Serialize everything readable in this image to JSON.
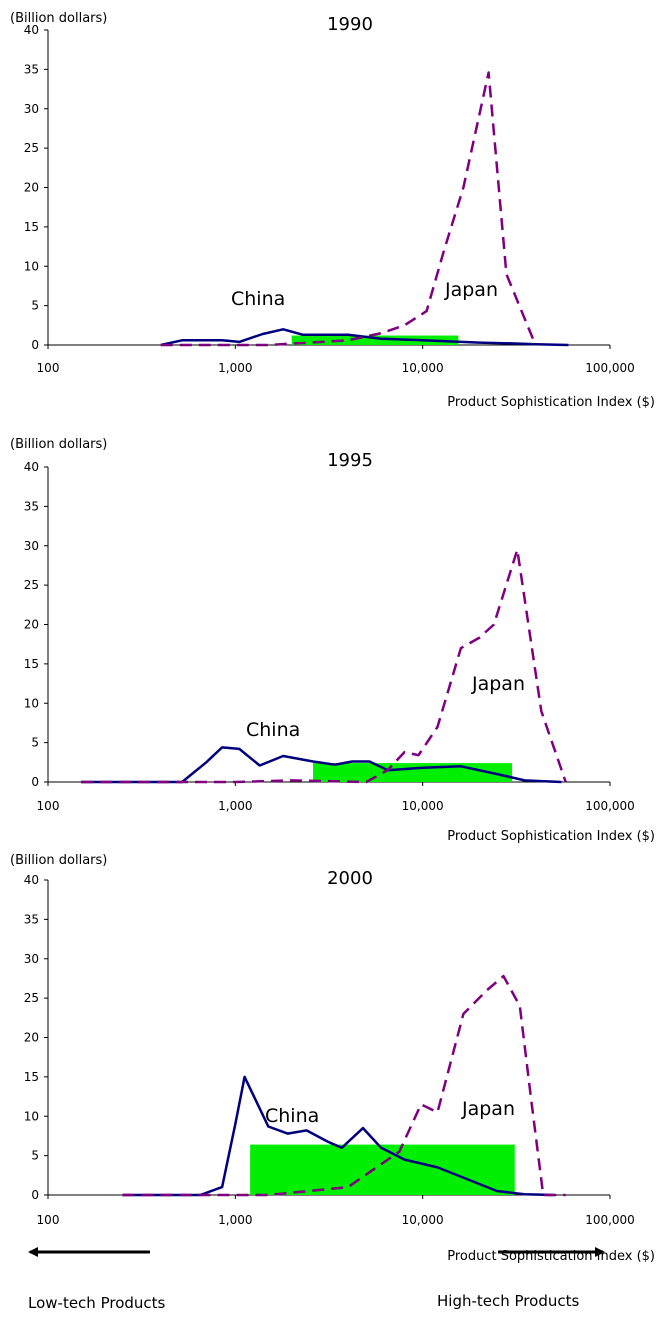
{
  "chart_data": [
    {
      "type": "line",
      "title": "1990",
      "ylabel": "(Billion dollars)",
      "xlabel": "Product Sophistication Index ($)",
      "xscale": "log",
      "ylim": [
        0,
        40
      ],
      "yticks": [
        "0",
        "5",
        "10",
        "15",
        "20",
        "25",
        "30",
        "35",
        "40"
      ],
      "xticks": [
        {
          "value": 100,
          "label": "100"
        },
        {
          "value": 1000,
          "label": "1,000"
        },
        {
          "value": 10000,
          "label": "10,000"
        },
        {
          "value": 100000,
          "label": "100,000"
        }
      ],
      "series": [
        {
          "name": "China",
          "color": "#00007f",
          "dash": "solid",
          "points": [
            [
              400,
              0
            ],
            [
              520,
              0.6
            ],
            [
              700,
              0.6
            ],
            [
              850,
              0.6
            ],
            [
              1050,
              0.4
            ],
            [
              1400,
              1.4
            ],
            [
              1800,
              2.0
            ],
            [
              2300,
              1.3
            ],
            [
              3000,
              1.3
            ],
            [
              4000,
              1.3
            ],
            [
              6000,
              0.8
            ],
            [
              10000,
              0.6
            ],
            [
              20000,
              0.3
            ],
            [
              30000,
              0.2
            ],
            [
              40000,
              0.1
            ],
            [
              60000,
              0
            ]
          ]
        },
        {
          "name": "Japan",
          "color": "#7f007f",
          "dash": "dashed",
          "points": [
            [
              400,
              0
            ],
            [
              800,
              0
            ],
            [
              1500,
              0
            ],
            [
              2500,
              0.3
            ],
            [
              4000,
              0.6
            ],
            [
              6000,
              1.5
            ],
            [
              8000,
              2.5
            ],
            [
              10500,
              4.3
            ],
            [
              13000,
              12
            ],
            [
              16500,
              20
            ],
            [
              22500,
              34.6
            ],
            [
              28000,
              9
            ],
            [
              40000,
              0
            ]
          ]
        }
      ],
      "annotations": {
        "china": "China",
        "japan": "Japan"
      },
      "highlight": {
        "from": 2000,
        "to": 15500,
        "height": 1.2,
        "color": "#00ee00"
      }
    },
    {
      "type": "line",
      "title": "1995",
      "ylabel": "(Billion dollars)",
      "xlabel": "Product Sophistication Index ($)",
      "xscale": "log",
      "ylim": [
        0,
        40
      ],
      "yticks": [
        "0",
        "5",
        "10",
        "15",
        "20",
        "25",
        "30",
        "35",
        "40"
      ],
      "xticks": [
        {
          "value": 100,
          "label": "100"
        },
        {
          "value": 1000,
          "label": "1,000"
        },
        {
          "value": 10000,
          "label": "10,000"
        },
        {
          "value": 100000,
          "label": "100,000"
        }
      ],
      "series": [
        {
          "name": "China",
          "color": "#00007f",
          "dash": "solid",
          "points": [
            [
              150,
              0
            ],
            [
              300,
              0
            ],
            [
              520,
              0
            ],
            [
              700,
              2.5
            ],
            [
              850,
              4.4
            ],
            [
              1050,
              4.2
            ],
            [
              1350,
              2.1
            ],
            [
              1800,
              3.3
            ],
            [
              2600,
              2.6
            ],
            [
              3400,
              2.2
            ],
            [
              4200,
              2.6
            ],
            [
              5200,
              2.6
            ],
            [
              6500,
              1.5
            ],
            [
              10000,
              1.8
            ],
            [
              16000,
              2.0
            ],
            [
              25000,
              1.0
            ],
            [
              35000,
              0.2
            ],
            [
              55000,
              0
            ]
          ]
        },
        {
          "name": "Japan",
          "color": "#7f007f",
          "dash": "dashed",
          "points": [
            [
              150,
              0
            ],
            [
              1000,
              0
            ],
            [
              2000,
              0.2
            ],
            [
              5000,
              0
            ],
            [
              6500,
              1.5
            ],
            [
              8000,
              3.8
            ],
            [
              9500,
              3.4
            ],
            [
              12000,
              7
            ],
            [
              16000,
              17
            ],
            [
              20000,
              18.3
            ],
            [
              24000,
              20
            ],
            [
              32000,
              29.5
            ],
            [
              43000,
              9
            ],
            [
              58000,
              0
            ]
          ]
        }
      ],
      "annotations": {
        "china": "China",
        "japan": "Japan"
      },
      "highlight": {
        "from": 2600,
        "to": 30000,
        "height": 2.4,
        "color": "#00ee00"
      }
    },
    {
      "type": "line",
      "title": "2000",
      "ylabel": "(Billion dollars)",
      "xlabel": "Product Sophistication Index ($)",
      "xscale": "log",
      "ylim": [
        0,
        40
      ],
      "yticks": [
        "0",
        "5",
        "10",
        "15",
        "20",
        "25",
        "30",
        "35",
        "40"
      ],
      "xticks": [
        {
          "value": 100,
          "label": "100"
        },
        {
          "value": 1000,
          "label": "1,000"
        },
        {
          "value": 10000,
          "label": "10,000"
        },
        {
          "value": 100000,
          "label": "100,000"
        }
      ],
      "series": [
        {
          "name": "China",
          "color": "#00007f",
          "dash": "solid",
          "points": [
            [
              250,
              0
            ],
            [
              650,
              0
            ],
            [
              850,
              1.0
            ],
            [
              1000,
              9
            ],
            [
              1120,
              15
            ],
            [
              1500,
              8.7
            ],
            [
              1900,
              7.8
            ],
            [
              2400,
              8.2
            ],
            [
              3100,
              6.8
            ],
            [
              3700,
              6.0
            ],
            [
              4800,
              8.5
            ],
            [
              6000,
              6.0
            ],
            [
              8000,
              4.5
            ],
            [
              12000,
              3.5
            ],
            [
              25000,
              0.5
            ],
            [
              35000,
              0.1
            ],
            [
              50000,
              0
            ]
          ]
        },
        {
          "name": "Japan",
          "color": "#7f007f",
          "dash": "dashed",
          "points": [
            [
              250,
              0
            ],
            [
              1500,
              0
            ],
            [
              4000,
              1.0
            ],
            [
              7500,
              5.5
            ],
            [
              9800,
              11.5
            ],
            [
              12000,
              10.5
            ],
            [
              16500,
              23
            ],
            [
              22000,
              26
            ],
            [
              27000,
              27.8
            ],
            [
              33000,
              24
            ],
            [
              38000,
              12
            ],
            [
              44000,
              0
            ],
            [
              58000,
              0
            ]
          ]
        }
      ],
      "annotations": {
        "china": "China",
        "japan": "Japan"
      },
      "highlight": {
        "from": 1200,
        "to": 31000,
        "height": 6.4,
        "color": "#00ee00"
      }
    }
  ],
  "footer": {
    "left_label": "Low-tech Products",
    "right_label": "High-tech Products"
  }
}
